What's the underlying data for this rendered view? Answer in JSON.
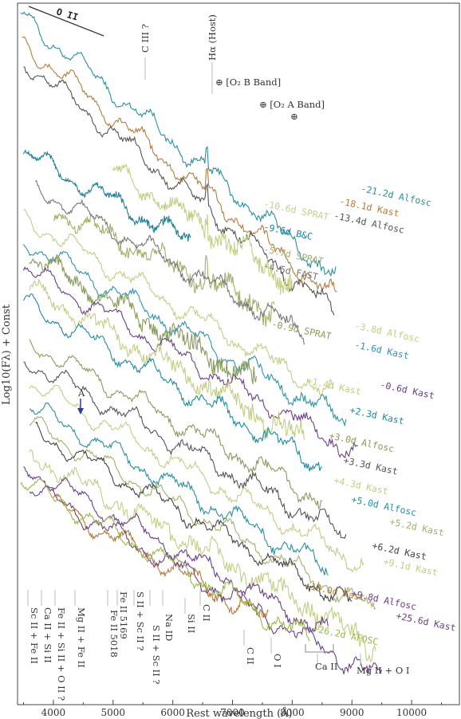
{
  "chart_data": {
    "type": "line",
    "xlabel": "Rest wavelength (Å)",
    "ylabel": "Log10(Fλ) + Const",
    "xlim": [
      3400,
      10800
    ],
    "xticks": [
      4000,
      5000,
      6000,
      7000,
      8000,
      9000,
      10000
    ],
    "xtick_labels": [
      "4000",
      "5000",
      "6000",
      "7000",
      "8000",
      "9000",
      "10000"
    ],
    "grid": false,
    "series": [
      {
        "name": "-21.2d Alfosc",
        "color": "#2a8fa0",
        "x": [
          3450,
          8730
        ],
        "y": [
          60.0,
          14.3
        ]
      },
      {
        "name": "-18.1d Kast",
        "color": "#b87a3c",
        "x": [
          3480,
          8750
        ],
        "y": [
          55.2,
          10.4
        ]
      },
      {
        "name": "-13.4d Alfosc",
        "color": "#555555",
        "x": [
          3500,
          8700
        ],
        "y": [
          52.0,
          8.3
        ]
      },
      {
        "name": "-10.6d SPRAT",
        "color": "#c6cf8a",
        "x": [
          5000,
          8000
        ],
        "y": [
          33.0,
          13.3
        ]
      },
      {
        "name": "-9.6d B&C",
        "color": "#1e7f99",
        "x": [
          3500,
          6300
        ],
        "y": [
          36.0,
          20.4
        ]
      },
      {
        "name": "-5.7d SPRAT",
        "color": "#a2b06e",
        "x": [
          4000,
          7700
        ],
        "y": [
          26.0,
          8.5
        ]
      },
      {
        "name": "-4.5d FAST",
        "color": "#777777",
        "x": [
          3700,
          8200
        ],
        "y": [
          30.0,
          4.5
        ]
      },
      {
        "name": "-3.8d Alfosc",
        "color": "#c3cd85",
        "x": [
          3500,
          8700
        ],
        "y": [
          24.7,
          -6.4
        ]
      },
      {
        "name": "-1.6d Kast",
        "color": "#2e93ac",
        "x": [
          3500,
          8900
        ],
        "y": [
          20.8,
          -10.9
        ]
      },
      {
        "name": "-0.9d SPRAT",
        "color": "#8a9b5c",
        "x": [
          3600,
          7400
        ],
        "y": [
          18.0,
          -3.8
        ]
      },
      {
        "name": "-0.6d Kast",
        "color": "#6b3f8a",
        "x": [
          3500,
          9100
        ],
        "y": [
          16.0,
          -16.5
        ]
      },
      {
        "name": "+1.4d Kast",
        "color": "#c3cd85",
        "x": [
          3600,
          8200
        ],
        "y": [
          12.5,
          -14.0
        ]
      },
      {
        "name": "+2.3d Kast",
        "color": "#1f8aa3",
        "x": [
          3500,
          8500
        ],
        "y": [
          10.0,
          -18.5
        ]
      },
      {
        "name": "+3.0d Alfosc",
        "color": "#8a9b5c",
        "x": [
          3600,
          8500
        ],
        "y": [
          3.0,
          -24.5
        ]
      },
      {
        "name": "+3.3d Kast",
        "color": "#555555",
        "x": [
          3500,
          8900
        ],
        "y": [
          0.0,
          -30.6
        ]
      },
      {
        "name": "+4.3d Kast",
        "color": "#c3cd85",
        "x": [
          3600,
          9200
        ],
        "y": [
          -4.0,
          -35.8
        ]
      },
      {
        "name": "+5.0d Alfosc",
        "color": "#2a8fa0",
        "x": [
          3600,
          8600
        ],
        "y": [
          -8.0,
          -36.4
        ]
      },
      {
        "name": "+5.2d Kast",
        "color": "#a2b06e",
        "x": [
          3600,
          9400
        ],
        "y": [
          -11.0,
          -44.0
        ]
      },
      {
        "name": "+6.2d Kast",
        "color": "#444444",
        "x": [
          3700,
          9000
        ],
        "y": [
          -12.5,
          -42.6
        ]
      },
      {
        "name": "+9.1d Kast",
        "color": "#c3cd85",
        "x": [
          3600,
          9400
        ],
        "y": [
          -16.5,
          -49.5
        ]
      },
      {
        "name": "+9.8d Alfosc",
        "color": "#6b3f8a",
        "x": [
          3500,
          8600
        ],
        "y": [
          -18.5,
          -47.5
        ]
      },
      {
        "name": "+13.0d Kast",
        "color": "#b87a3c",
        "x": [
          4000,
          7600
        ],
        "y": [
          -25.0,
          -45.5
        ]
      },
      {
        "name": "+25.6d Kast",
        "color": "#6b3f8a",
        "x": [
          3600,
          9500
        ],
        "y": [
          -22.0,
          -55.6
        ]
      },
      {
        "name": "+26.2d AFOSC",
        "color": "#9ab84a",
        "x": [
          3450,
          8300
        ],
        "y": [
          -21.0,
          -48.6
        ]
      }
    ],
    "annotations": {
      "top_left": "O II",
      "top_lines": [
        "C III ?",
        "Hα (Host)",
        "⊕ [O₂ B Band]",
        "⊕ [O₂ A Band]"
      ],
      "marker": "A",
      "bottom_lines": [
        "Sc II + Fe II",
        "Ca II + Si II",
        "Fe II + Si II + O II ?",
        "Mg II + Fe II",
        "Fe II 5018",
        "Fe II 5169",
        "S II + Sc II ?",
        "S II + Sc II ?",
        "Na ID",
        "Si II",
        "C II",
        "C II",
        "O I",
        "Ca II",
        "Mg II + O I"
      ]
    }
  }
}
